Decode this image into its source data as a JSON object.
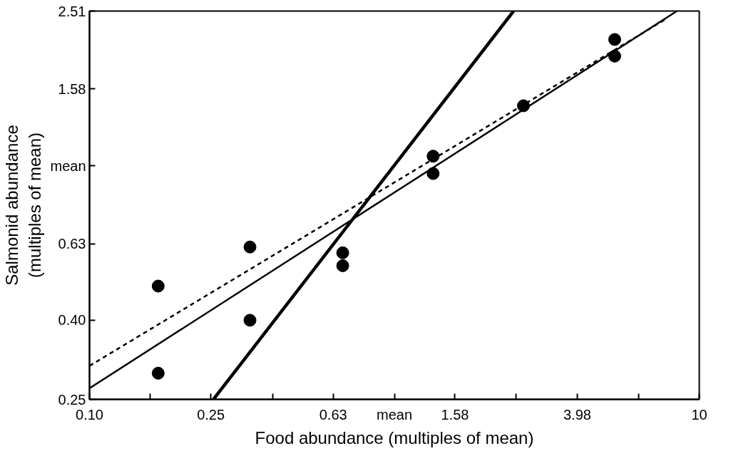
{
  "chart_data": {
    "type": "scatter",
    "xlabel": "Food abundance (multiples of mean)",
    "ylabel": "Salmonid abundance\n(multiples of mean)",
    "log": "xy",
    "grid": false,
    "xlim": [
      0.1,
      10
    ],
    "ylim": [
      0.25,
      2.51
    ],
    "xticks": [
      {
        "value": 0.1,
        "label": "0.10"
      },
      {
        "value": 0.158,
        "label": null
      },
      0.25,
      {
        "value": 0.4,
        "label": null
      },
      0.63,
      {
        "value": 1,
        "label": "mean"
      },
      1.58,
      {
        "value": 2.51,
        "label": null
      },
      3.98,
      {
        "value": 6.31,
        "label": null
      },
      10
    ],
    "yticks": [
      0.25,
      {
        "value": 0.4,
        "label": "0.40"
      },
      0.63,
      {
        "value": 1,
        "label": "mean"
      },
      1.58,
      2.51
    ],
    "series": [
      {
        "marker": "circle",
        "color": "#000000",
        "x": [
          0.168,
          0.168,
          0.336,
          0.336,
          0.677,
          0.677,
          1.34,
          1.34,
          2.65,
          5.28,
          5.28
        ],
        "values": [
          0.49,
          0.292,
          0.618,
          0.4,
          0.597,
          0.553,
          1.06,
          0.956,
          1.43,
          2.12,
          1.92
        ]
      },
      {
        "type": "line",
        "line_style": "solid",
        "color": "#000000",
        "x": [
          0.1,
          8.45
        ],
        "values": [
          0.267,
          2.51
        ]
      },
      {
        "type": "line",
        "line_style": "dashed",
        "color": "#000000",
        "x": [
          0.1,
          7.75
        ],
        "values": [
          0.305,
          2.39
        ]
      },
      {
        "type": "line",
        "line_style": "solid",
        "color": "#000000",
        "x": [
          0.255,
          2.46
        ],
        "values": [
          0.25,
          2.51
        ]
      }
    ]
  }
}
